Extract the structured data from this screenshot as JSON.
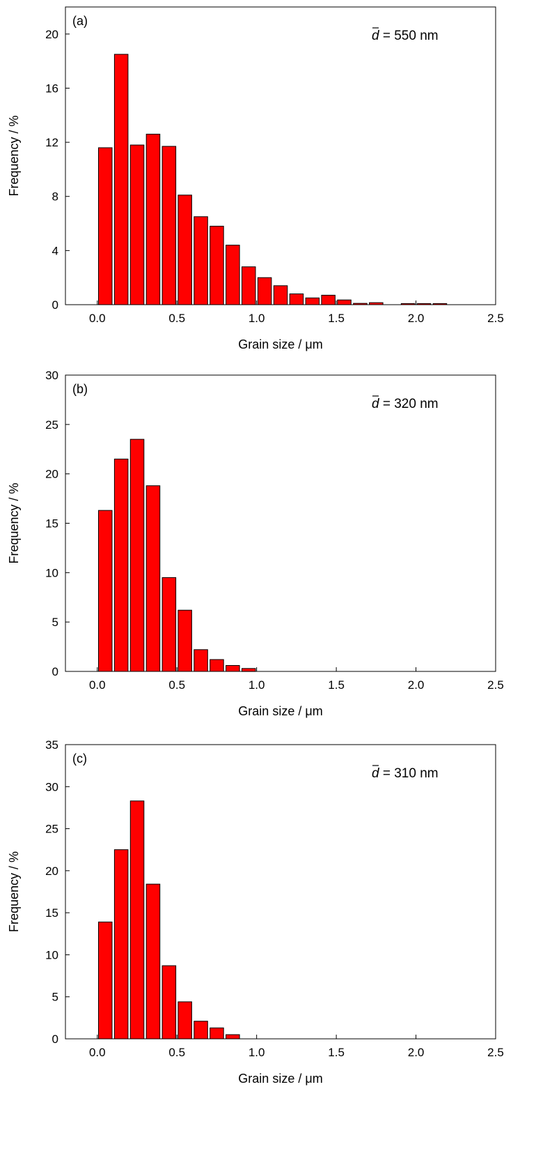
{
  "chart_data": [
    {
      "type": "bar",
      "panel_label": "(a)",
      "annotation": {
        "symbol": "d",
        "text": " = 550 nm"
      },
      "xlabel": "Grain size / μm",
      "ylabel": "Frequency / %",
      "xlim": [
        -0.2,
        2.5
      ],
      "ylim": [
        0,
        22
      ],
      "xticks": [
        0.0,
        0.5,
        1.0,
        1.5,
        2.0,
        2.5
      ],
      "xtick_labels": [
        "0.0",
        "0.5",
        "1.0",
        "1.5",
        "2.0",
        "2.5"
      ],
      "yticks": [
        0,
        4,
        8,
        12,
        16,
        20
      ],
      "ytick_labels": [
        "0",
        "4",
        "8",
        "12",
        "16",
        "20"
      ],
      "bar_width": 0.085,
      "bar_color": "#ff0000",
      "x": [
        0.05,
        0.15,
        0.25,
        0.35,
        0.45,
        0.55,
        0.65,
        0.75,
        0.85,
        0.95,
        1.05,
        1.15,
        1.25,
        1.35,
        1.45,
        1.55,
        1.65,
        1.75,
        1.85,
        1.95,
        2.05,
        2.15
      ],
      "values": [
        11.6,
        18.5,
        11.8,
        12.6,
        11.7,
        8.1,
        6.5,
        5.8,
        4.4,
        2.8,
        2.0,
        1.4,
        0.8,
        0.5,
        0.7,
        0.35,
        0.1,
        0.15,
        0.0,
        0.08,
        0.08,
        0.08
      ]
    },
    {
      "type": "bar",
      "panel_label": "(b)",
      "annotation": {
        "symbol": "d",
        "text": " = 320 nm"
      },
      "xlabel": "Grain size / μm",
      "ylabel": "Frequency / %",
      "xlim": [
        -0.2,
        2.5
      ],
      "ylim": [
        0,
        30
      ],
      "xticks": [
        0.0,
        0.5,
        1.0,
        1.5,
        2.0,
        2.5
      ],
      "xtick_labels": [
        "0.0",
        "0.5",
        "1.0",
        "1.5",
        "2.0",
        "2.5"
      ],
      "yticks": [
        0,
        5,
        10,
        15,
        20,
        25,
        30
      ],
      "ytick_labels": [
        "0",
        "5",
        "10",
        "15",
        "20",
        "25",
        "30"
      ],
      "bar_width": 0.085,
      "bar_color": "#ff0000",
      "x": [
        0.05,
        0.15,
        0.25,
        0.35,
        0.45,
        0.55,
        0.65,
        0.75,
        0.85,
        0.95
      ],
      "values": [
        16.3,
        21.5,
        23.5,
        18.8,
        9.5,
        6.2,
        2.2,
        1.2,
        0.6,
        0.3
      ]
    },
    {
      "type": "bar",
      "panel_label": "(c)",
      "annotation": {
        "symbol": "d",
        "text": " = 310 nm"
      },
      "xlabel": "Grain size / μm",
      "ylabel": "Frequency / %",
      "xlim": [
        -0.2,
        2.5
      ],
      "ylim": [
        0,
        35
      ],
      "xticks": [
        0.0,
        0.5,
        1.0,
        1.5,
        2.0,
        2.5
      ],
      "xtick_labels": [
        "0.0",
        "0.5",
        "1.0",
        "1.5",
        "2.0",
        "2.5"
      ],
      "yticks": [
        0,
        5,
        10,
        15,
        20,
        25,
        30,
        35
      ],
      "ytick_labels": [
        "0",
        "5",
        "10",
        "15",
        "20",
        "25",
        "30",
        "35"
      ],
      "bar_width": 0.085,
      "bar_color": "#ff0000",
      "x": [
        0.05,
        0.15,
        0.25,
        0.35,
        0.45,
        0.55,
        0.65,
        0.75,
        0.85
      ],
      "values": [
        13.9,
        22.5,
        28.3,
        18.4,
        8.7,
        4.4,
        2.1,
        1.3,
        0.5
      ]
    }
  ]
}
